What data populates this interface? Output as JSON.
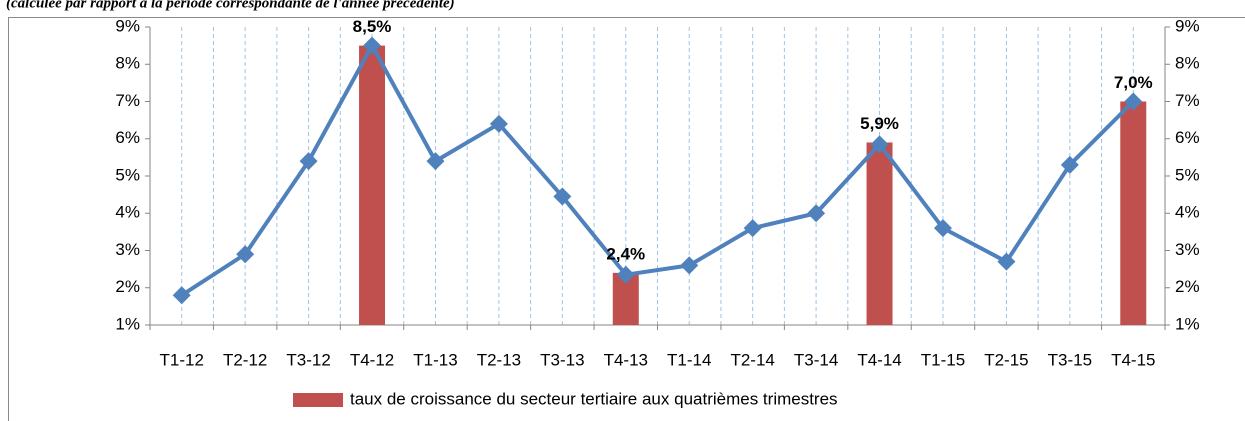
{
  "chart_data": {
    "type": "bar-line",
    "subtitle": "(calculée par rapport à la période correspondante de l'année précédente)",
    "categories": [
      "T1-12",
      "T2-12",
      "T3-12",
      "T4-12",
      "T1-13",
      "T2-13",
      "T3-13",
      "T4-13",
      "T1-14",
      "T2-14",
      "T3-14",
      "T4-14",
      "T1-15",
      "T2-15",
      "T3-15",
      "T4-15"
    ],
    "series": [
      {
        "name": "taux de croissance du secteur tertiaire aux quatrièmes trimestres",
        "type": "bar",
        "color": "#c0504d",
        "values": [
          null,
          null,
          null,
          8.5,
          null,
          null,
          null,
          2.4,
          null,
          null,
          null,
          5.9,
          null,
          null,
          null,
          7.0
        ],
        "value_labels": [
          null,
          null,
          null,
          "8,5%",
          null,
          null,
          null,
          "2,4%",
          null,
          null,
          null,
          "5,9%",
          null,
          null,
          null,
          "7,0%"
        ]
      },
      {
        "type": "line",
        "color": "#4f81bd",
        "values": [
          1.8,
          2.9,
          5.4,
          8.5,
          5.4,
          6.4,
          4.45,
          2.35,
          2.6,
          3.6,
          4.0,
          5.85,
          3.6,
          2.7,
          5.3,
          7.0
        ]
      }
    ],
    "ylim": [
      1,
      9
    ],
    "yticks": [
      {
        "value": 1,
        "label": "1%"
      },
      {
        "value": 2,
        "label": "2%"
      },
      {
        "value": 3,
        "label": "3%"
      },
      {
        "value": 4,
        "label": "4%"
      },
      {
        "value": 5,
        "label": "5%"
      },
      {
        "value": 6,
        "label": "6%"
      },
      {
        "value": 7,
        "label": "7%"
      },
      {
        "value": 8,
        "label": "8%"
      },
      {
        "value": 9,
        "label": "9%"
      }
    ],
    "y2lim": [
      1,
      9
    ],
    "y2ticks": [
      {
        "value": 1,
        "label": "1%"
      },
      {
        "value": 2,
        "label": "2%"
      },
      {
        "value": 3,
        "label": "3%"
      },
      {
        "value": 4,
        "label": "4%"
      },
      {
        "value": 5,
        "label": "5%"
      },
      {
        "value": 6,
        "label": "6%"
      },
      {
        "value": 7,
        "label": "7%"
      },
      {
        "value": 8,
        "label": "8%"
      },
      {
        "value": 9,
        "label": "9%"
      }
    ],
    "grid": true,
    "legend": "bottom"
  }
}
